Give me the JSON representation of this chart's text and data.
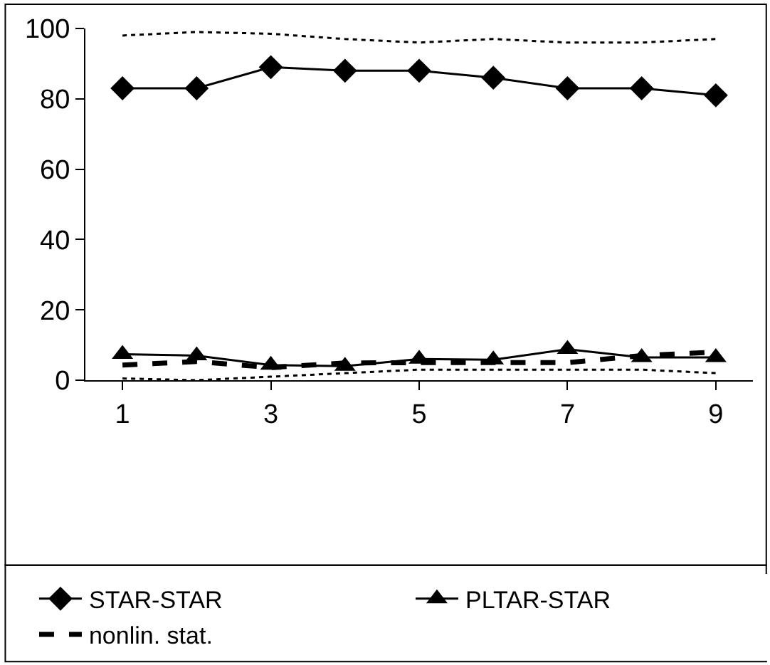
{
  "chart_data": {
    "type": "line",
    "x": [
      1,
      2,
      3,
      4,
      5,
      6,
      7,
      8,
      9
    ],
    "series": [
      {
        "name": "STAR-STAR",
        "color": "#000000",
        "marker": "diamond",
        "line_style": "solid",
        "values": [
          83,
          83,
          89,
          88,
          88,
          86,
          83,
          83,
          81
        ]
      },
      {
        "name": "PLTAR-STAR",
        "color": "#000000",
        "marker": "triangle",
        "line_style": "solid",
        "values": [
          7.4,
          7,
          4.3,
          4,
          6,
          5.8,
          8.8,
          6.5,
          6.5
        ]
      },
      {
        "name": "nonlin. stat.",
        "color": "#000000",
        "marker": "none",
        "line_style": "dashed",
        "values": [
          4.3,
          5.3,
          3.6,
          4.9,
          5,
          5,
          5,
          7,
          8
        ]
      },
      {
        "color": "#000000",
        "marker": "none",
        "line_style": "dotted",
        "values": [
          98,
          99,
          98.5,
          97,
          96,
          97,
          96,
          96,
          97
        ]
      },
      {
        "color": "#000000",
        "marker": "none",
        "line_style": "dotted",
        "values": [
          0.5,
          0,
          1,
          2,
          3,
          3,
          3,
          3,
          2
        ]
      }
    ],
    "xlim": [
      0.5,
      9.5
    ],
    "xticks": [
      1,
      3,
      5,
      7,
      9
    ],
    "ylim": [
      0,
      100
    ],
    "yticks": [
      0,
      20,
      40,
      60,
      80,
      100
    ],
    "legend": "bottom"
  }
}
